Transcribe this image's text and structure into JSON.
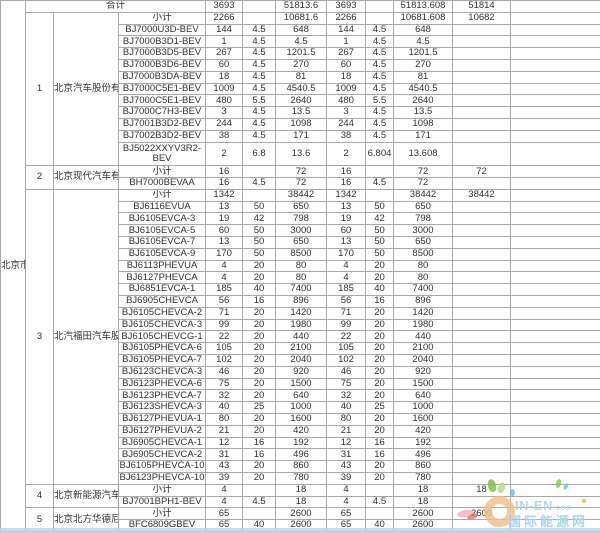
{
  "table": {
    "region": "北京市",
    "grand_total": {
      "label": "合计",
      "values": [
        "3693",
        "",
        "51813.6",
        "3693",
        "",
        "51813.608",
        "51814"
      ]
    },
    "subtotal_label": "小计",
    "sections": [
      {
        "no": "1",
        "company": "北京汽车股份有限公司",
        "rows": [
          {
            "label": "小计",
            "subtotal": true,
            "values": [
              "2266",
              "",
              "10681.6",
              "2266",
              "",
              "10681.608",
              "10682"
            ]
          },
          {
            "label": "BJ7000U3D-BEV",
            "values": [
              "144",
              "4.5",
              "648",
              "144",
              "4.5",
              "648",
              ""
            ]
          },
          {
            "label": "BJ7000B3D1-BEV",
            "values": [
              "1",
              "4.5",
              "4.5",
              "1",
              "4.5",
              "4.5",
              ""
            ]
          },
          {
            "label": "BJ7000B3D5-BEV",
            "values": [
              "267",
              "4.5",
              "1201.5",
              "267",
              "4.5",
              "1201.5",
              ""
            ]
          },
          {
            "label": "BJ7000B3D6-BEV",
            "values": [
              "60",
              "4.5",
              "270",
              "60",
              "4.5",
              "270",
              ""
            ]
          },
          {
            "label": "BJ7000B3DA-BEV",
            "values": [
              "18",
              "4.5",
              "81",
              "18",
              "4.5",
              "81",
              ""
            ]
          },
          {
            "label": "BJ7000C5E1-BEV",
            "values": [
              "1009",
              "4.5",
              "4540.5",
              "1009",
              "4.5",
              "4540.5",
              ""
            ]
          },
          {
            "label": "BJ7000C5E1-BEV",
            "values": [
              "480",
              "5.5",
              "2640",
              "480",
              "5.5",
              "2640",
              ""
            ]
          },
          {
            "label": "BJ7000C7H3-BEV",
            "values": [
              "3",
              "4.5",
              "13.5",
              "3",
              "4.5",
              "13.5",
              ""
            ]
          },
          {
            "label": "BJ7001B3D2-BEV",
            "values": [
              "244",
              "4.5",
              "1098",
              "244",
              "4.5",
              "1098",
              ""
            ]
          },
          {
            "label": "BJ7002B3D2-BEV",
            "values": [
              "38",
              "4.5",
              "171",
              "38",
              "4.5",
              "171",
              ""
            ]
          },
          {
            "label": "BJ5022XXYV3R2-BEV",
            "tall": true,
            "values": [
              "2",
              "6.8",
              "13.6",
              "2",
              "6.804",
              "13.608",
              ""
            ]
          }
        ]
      },
      {
        "no": "2",
        "company": "北京现代汽车有限公司",
        "rows": [
          {
            "label": "小计",
            "subtotal": true,
            "values": [
              "16",
              "",
              "72",
              "16",
              "",
              "72",
              "72"
            ]
          },
          {
            "label": "BH7000BEVAA",
            "values": [
              "16",
              "4.5",
              "72",
              "16",
              "4.5",
              "72",
              ""
            ]
          }
        ]
      },
      {
        "no": "3",
        "company": "北汽福田汽车股份有限公司",
        "rows": [
          {
            "label": "小计",
            "subtotal": true,
            "values": [
              "1342",
              "",
              "38442",
              "1342",
              "",
              "38442",
              "38442"
            ]
          },
          {
            "label": "BJ6116EVUA",
            "values": [
              "13",
              "50",
              "650",
              "13",
              "50",
              "650",
              ""
            ]
          },
          {
            "label": "BJ6105EVCA-3",
            "values": [
              "19",
              "42",
              "798",
              "19",
              "42",
              "798",
              ""
            ]
          },
          {
            "label": "BJ6105EVCA-5",
            "values": [
              "60",
              "50",
              "3000",
              "60",
              "50",
              "3000",
              ""
            ]
          },
          {
            "label": "BJ6105EVCA-7",
            "values": [
              "13",
              "50",
              "650",
              "13",
              "50",
              "650",
              ""
            ]
          },
          {
            "label": "BJ6105EVCA-9",
            "values": [
              "170",
              "50",
              "8500",
              "170",
              "50",
              "8500",
              ""
            ]
          },
          {
            "label": "BJ6113PHEVUA",
            "values": [
              "4",
              "20",
              "80",
              "4",
              "20",
              "80",
              ""
            ]
          },
          {
            "label": "BJ6127PHEVCA",
            "values": [
              "4",
              "20",
              "80",
              "4",
              "20",
              "80",
              ""
            ]
          },
          {
            "label": "BJ6851EVCA-1",
            "values": [
              "185",
              "40",
              "7400",
              "185",
              "40",
              "7400",
              ""
            ]
          },
          {
            "label": "BJ6905CHEVCA",
            "values": [
              "56",
              "16",
              "896",
              "56",
              "16",
              "896",
              ""
            ]
          },
          {
            "label": "BJ6105CHEVCA-2",
            "values": [
              "71",
              "20",
              "1420",
              "71",
              "20",
              "1420",
              ""
            ]
          },
          {
            "label": "BJ6105CHEVCA-3",
            "values": [
              "99",
              "20",
              "1980",
              "99",
              "20",
              "1980",
              ""
            ]
          },
          {
            "label": "BJ6105CHEVCG-1",
            "values": [
              "22",
              "20",
              "440",
              "22",
              "20",
              "440",
              ""
            ]
          },
          {
            "label": "BJ6105PHEVCA-6",
            "values": [
              "105",
              "20",
              "2100",
              "105",
              "20",
              "2100",
              ""
            ]
          },
          {
            "label": "BJ6105PHEVCA-7",
            "values": [
              "102",
              "20",
              "2040",
              "102",
              "20",
              "2040",
              ""
            ]
          },
          {
            "label": "BJ6123CHEVCA-3",
            "values": [
              "46",
              "20",
              "920",
              "46",
              "20",
              "920",
              ""
            ]
          },
          {
            "label": "BJ6123PHEVCA-6",
            "values": [
              "75",
              "20",
              "1500",
              "75",
              "20",
              "1500",
              ""
            ]
          },
          {
            "label": "BJ6123PHEVCA-7",
            "values": [
              "32",
              "20",
              "640",
              "32",
              "20",
              "640",
              ""
            ]
          },
          {
            "label": "BJ6123SHEVCA-3",
            "values": [
              "40",
              "25",
              "1000",
              "40",
              "25",
              "1000",
              ""
            ]
          },
          {
            "label": "BJ6127PHEVUA-1",
            "values": [
              "80",
              "20",
              "1600",
              "80",
              "20",
              "1600",
              ""
            ]
          },
          {
            "label": "BJ6127PHEVUA-2",
            "values": [
              "21",
              "20",
              "420",
              "21",
              "20",
              "420",
              ""
            ]
          },
          {
            "label": "BJ6905CHEVCA-1",
            "values": [
              "12",
              "16",
              "192",
              "12",
              "16",
              "192",
              ""
            ]
          },
          {
            "label": "BJ6905CHEVCA-2",
            "values": [
              "31",
              "16",
              "496",
              "31",
              "16",
              "496",
              ""
            ]
          },
          {
            "label": "BJ6105PHEVCA-10",
            "values": [
              "43",
              "20",
              "860",
              "43",
              "20",
              "860",
              ""
            ]
          },
          {
            "label": "BJ6123PHEVCA-10",
            "values": [
              "39",
              "20",
              "780",
              "39",
              "20",
              "780",
              ""
            ]
          }
        ]
      },
      {
        "no": "4",
        "company": "北京新能源汽车股份有限公司",
        "rows": [
          {
            "label": "小计",
            "subtotal": true,
            "values": [
              "4",
              "",
              "18",
              "4",
              "",
              "18",
              "18"
            ]
          },
          {
            "label": "BJ7001BPH1-BEV",
            "values": [
              "4",
              "4.5",
              "18",
              "4",
              "4.5",
              "18",
              ""
            ]
          }
        ]
      },
      {
        "no": "5",
        "company": "北京北方华德尼奥普兰客车股份",
        "rows": [
          {
            "label": "小计",
            "subtotal": true,
            "values": [
              "65",
              "",
              "2600",
              "65",
              "",
              "2600",
              "2600"
            ]
          },
          {
            "label": "BFC6809GBEV",
            "values": [
              "65",
              "40",
              "2600",
              "65",
              "40",
              "2600",
              ""
            ]
          }
        ]
      }
    ]
  },
  "watermark": {
    "site": "IN-EN",
    "tld": ".com",
    "name": "国际能源网"
  }
}
